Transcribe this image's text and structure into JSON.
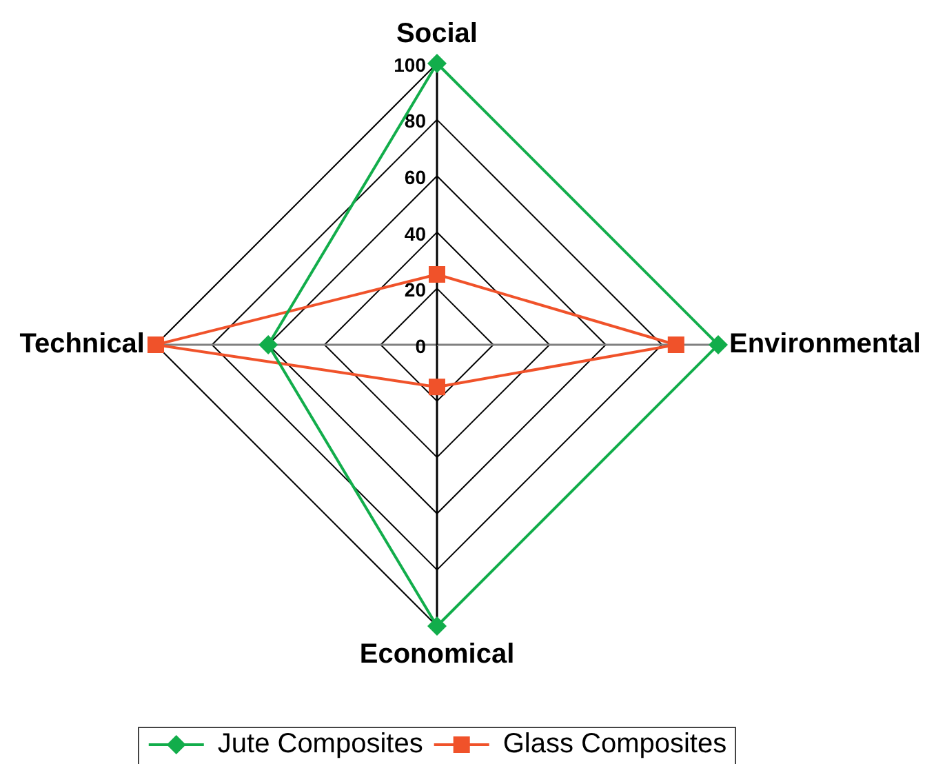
{
  "chart_data": {
    "type": "radar",
    "categories": [
      "Social",
      "Environmental",
      "Economical",
      "Technical"
    ],
    "series": [
      {
        "name": "Jute Composites",
        "color": "#12ad4b",
        "marker": "diamond",
        "values": [
          100,
          100,
          100,
          60
        ]
      },
      {
        "name": "Glass Composites",
        "color": "#f0522a",
        "marker": "square",
        "values": [
          25,
          85,
          15,
          100
        ]
      }
    ],
    "ylim": [
      0,
      100
    ],
    "yticks": [
      0,
      20,
      40,
      60,
      80,
      100
    ],
    "grid": true,
    "legend": "bottom"
  }
}
